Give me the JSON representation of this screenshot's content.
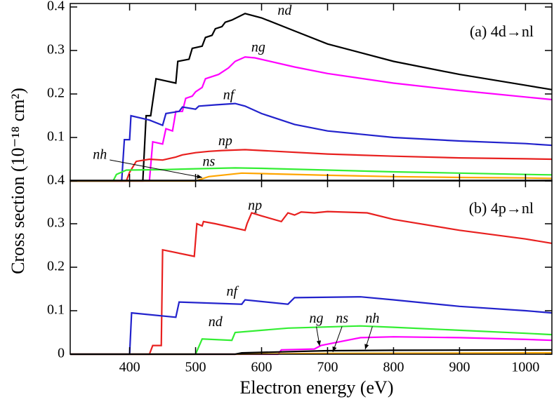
{
  "chart_data": [
    {
      "type": "line",
      "ylim": [
        0,
        0.408
      ],
      "yticks": [
        {
          "value": 0,
          "label": "0.4"
        },
        0.1,
        0.2,
        0.3,
        0.4
      ],
      "panel_label": "(a) 4d→nl",
      "series": [
        {
          "name": "nd",
          "color": "#000000",
          "x": [
            310,
            420,
            425,
            432,
            440,
            470,
            473,
            490,
            495,
            510,
            515,
            525,
            530,
            540,
            545,
            555,
            575,
            600,
            650,
            700,
            800,
            900,
            1000,
            1040
          ],
          "values": [
            0,
            0,
            0.15,
            0.15,
            0.235,
            0.225,
            0.275,
            0.28,
            0.305,
            0.31,
            0.33,
            0.335,
            0.35,
            0.355,
            0.365,
            0.37,
            0.385,
            0.375,
            0.345,
            0.315,
            0.275,
            0.245,
            0.22,
            0.21
          ]
        },
        {
          "name": "ng",
          "color": "#ff00ff",
          "x": [
            310,
            430,
            435,
            450,
            455,
            465,
            470,
            480,
            485,
            495,
            500,
            510,
            515,
            525,
            535,
            550,
            560,
            575,
            590,
            650,
            700,
            800,
            900,
            1000,
            1040
          ],
          "values": [
            0,
            0,
            0.09,
            0.085,
            0.12,
            0.115,
            0.16,
            0.16,
            0.19,
            0.195,
            0.205,
            0.215,
            0.235,
            0.24,
            0.245,
            0.26,
            0.275,
            0.285,
            0.283,
            0.262,
            0.247,
            0.225,
            0.208,
            0.193,
            0.187
          ]
        },
        {
          "name": "nf",
          "color": "#2222cc",
          "x": [
            310,
            388,
            392,
            400,
            402,
            430,
            450,
            455,
            475,
            480,
            500,
            505,
            530,
            560,
            575,
            600,
            650,
            700,
            800,
            900,
            1000,
            1040
          ],
          "values": [
            0,
            0,
            0.095,
            0.095,
            0.15,
            0.14,
            0.128,
            0.155,
            0.16,
            0.17,
            0.165,
            0.172,
            0.175,
            0.178,
            0.172,
            0.155,
            0.13,
            0.115,
            0.1,
            0.092,
            0.086,
            0.082
          ]
        },
        {
          "name": "np",
          "color": "#e8201f",
          "x": [
            310,
            395,
            400,
            410,
            430,
            450,
            470,
            480,
            500,
            520,
            540,
            575,
            600,
            700,
            800,
            900,
            1000,
            1040
          ],
          "values": [
            0,
            0,
            0.02,
            0.045,
            0.05,
            0.048,
            0.055,
            0.06,
            0.065,
            0.068,
            0.07,
            0.072,
            0.07,
            0.062,
            0.057,
            0.053,
            0.051,
            0.05
          ]
        },
        {
          "name": "ns",
          "color": "#33ee33",
          "x": [
            310,
            375,
            380,
            395,
            450,
            500,
            560,
            600,
            700,
            800,
            900,
            1000,
            1040
          ],
          "values": [
            0,
            0,
            0.015,
            0.025,
            0.026,
            0.028,
            0.03,
            0.029,
            0.025,
            0.021,
            0.018,
            0.015,
            0.014
          ]
        },
        {
          "name": "nh",
          "color": "#ffa500",
          "x": [
            310,
            500,
            520,
            570,
            600,
            700,
            800,
            900,
            1000,
            1040
          ],
          "values": [
            0,
            0,
            0.01,
            0.018,
            0.017,
            0.013,
            0.01,
            0.008,
            0.007,
            0.006
          ]
        }
      ]
    },
    {
      "type": "line",
      "ylim": [
        0,
        0.4
      ],
      "yticks": [
        0,
        0.1,
        0.2,
        0.3
      ],
      "xlim": [
        310,
        1040
      ],
      "xticks": [
        400,
        500,
        600,
        700,
        800,
        900,
        1000
      ],
      "xlabel": "Electron energy (eV)",
      "ylabel": "Cross section (10⁻¹⁸ cm²)",
      "panel_label": "(b) 4p→nl",
      "series": [
        {
          "name": "np",
          "color": "#e8201f",
          "x": [
            310,
            430,
            435,
            448,
            450,
            498,
            502,
            510,
            512,
            530,
            575,
            578,
            585,
            600,
            630,
            640,
            650,
            660,
            680,
            700,
            760,
            800,
            900,
            1000,
            1040
          ],
          "values": [
            0,
            0,
            0.02,
            0.02,
            0.24,
            0.225,
            0.3,
            0.295,
            0.305,
            0.3,
            0.285,
            0.3,
            0.325,
            0.318,
            0.305,
            0.325,
            0.32,
            0.327,
            0.325,
            0.328,
            0.325,
            0.31,
            0.285,
            0.265,
            0.255
          ]
        },
        {
          "name": "nf",
          "color": "#2222cc",
          "x": [
            310,
            400,
            403,
            470,
            475,
            570,
            575,
            640,
            650,
            750,
            800,
            900,
            1000,
            1040
          ],
          "values": [
            0,
            0,
            0.095,
            0.085,
            0.12,
            0.115,
            0.125,
            0.115,
            0.13,
            0.132,
            0.125,
            0.11,
            0.1,
            0.095
          ]
        },
        {
          "name": "nd",
          "color": "#33ee33",
          "x": [
            310,
            500,
            510,
            555,
            560,
            640,
            750,
            800,
            900,
            1000,
            1040
          ],
          "values": [
            0,
            0,
            0.035,
            0.032,
            0.05,
            0.06,
            0.065,
            0.062,
            0.055,
            0.048,
            0.045
          ]
        },
        {
          "name": "ng",
          "color": "#ff00ff",
          "x": [
            310,
            625,
            630,
            680,
            690,
            750,
            800,
            900,
            1000,
            1040
          ],
          "values": [
            0,
            0,
            0.01,
            0.012,
            0.02,
            0.038,
            0.04,
            0.038,
            0.034,
            0.032
          ]
        },
        {
          "name": "ns",
          "color": "#ffa500",
          "x": [
            310,
            560,
            700,
            1040
          ],
          "values": [
            0,
            0,
            0.002,
            0.003
          ]
        },
        {
          "name": "nh",
          "color": "#000000",
          "x": [
            310,
            560,
            570,
            700,
            800,
            1040
          ],
          "values": [
            0,
            0,
            0.003,
            0.008,
            0.009,
            0.01
          ]
        }
      ]
    }
  ]
}
